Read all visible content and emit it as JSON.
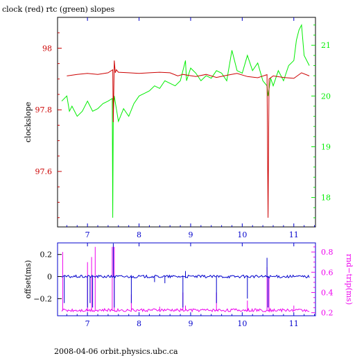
{
  "page_title": "clock (red) rtc (green) slopes",
  "footer": "2008-04-06 orbit.physics.ubc.ca",
  "colors": {
    "clock": "#cc0000",
    "rtc": "#00ee00",
    "offset": "#0000cc",
    "rndtrip": "#ee00ee",
    "frame_top": "#000000",
    "frame_bottom": "#0000cc"
  },
  "chart_data": [
    {
      "type": "line",
      "title": "clock (red) rtc (green) slopes",
      "xlim": [
        6.42,
        11.42
      ],
      "xticks": [
        7,
        8,
        9,
        10,
        11
      ],
      "xtick_labels": [
        "7",
        "8",
        "9",
        "10",
        "11"
      ],
      "left_axis": {
        "label": "clockslope",
        "ylim": [
          97.42,
          98.1
        ],
        "ticks": [
          97.6,
          97.8,
          98.0
        ],
        "tick_labels": [
          "97.6",
          "97.8",
          "98"
        ]
      },
      "right_axis": {
        "label": "",
        "ylim": [
          17.42,
          21.55
        ],
        "ticks": [
          18,
          19,
          20,
          21
        ],
        "tick_labels": [
          "18",
          "19",
          "20",
          "21"
        ]
      },
      "series": [
        {
          "name": "clock",
          "axis": "left",
          "x": [
            6.6,
            6.8,
            7.0,
            7.2,
            7.4,
            7.49,
            7.5,
            7.52,
            7.54,
            7.56,
            7.6,
            7.8,
            8.0,
            8.2,
            8.4,
            8.6,
            8.75,
            8.85,
            8.95,
            9.1,
            9.3,
            9.5,
            9.7,
            9.9,
            10.1,
            10.3,
            10.48,
            10.5,
            10.52,
            10.6,
            10.8,
            11.0,
            11.15,
            11.3
          ],
          "y": [
            97.91,
            97.915,
            97.918,
            97.915,
            97.92,
            97.93,
            97.76,
            97.96,
            97.92,
            97.93,
            97.922,
            97.92,
            97.918,
            97.92,
            97.922,
            97.92,
            97.91,
            97.915,
            97.912,
            97.908,
            97.915,
            97.905,
            97.912,
            97.918,
            97.908,
            97.904,
            97.914,
            97.45,
            97.9,
            97.91,
            97.905,
            97.902,
            97.92,
            97.91
          ]
        },
        {
          "name": "rtc",
          "axis": "left_axis_shared_x",
          "axis_ref": "right",
          "x": [
            6.5,
            6.6,
            6.65,
            6.7,
            6.8,
            6.9,
            7.0,
            7.1,
            7.2,
            7.3,
            7.4,
            7.48,
            7.49,
            7.5,
            7.52,
            7.6,
            7.7,
            7.8,
            7.9,
            8.0,
            8.1,
            8.2,
            8.3,
            8.4,
            8.5,
            8.6,
            8.7,
            8.8,
            8.9,
            8.92,
            9.0,
            9.1,
            9.2,
            9.3,
            9.4,
            9.5,
            9.6,
            9.7,
            9.8,
            9.9,
            10.0,
            10.1,
            10.2,
            10.3,
            10.4,
            10.48,
            10.5,
            10.55,
            10.6,
            10.7,
            10.8,
            10.9,
            11.0,
            11.05,
            11.1,
            11.15,
            11.2,
            11.3
          ],
          "y": [
            19.9,
            20.0,
            19.7,
            19.8,
            19.6,
            19.7,
            19.9,
            19.7,
            19.75,
            19.85,
            19.9,
            19.95,
            17.6,
            19.7,
            20.0,
            19.5,
            19.75,
            19.6,
            19.85,
            20.0,
            20.05,
            20.1,
            20.2,
            20.15,
            20.3,
            20.25,
            20.2,
            20.3,
            20.7,
            20.3,
            20.55,
            20.45,
            20.3,
            20.4,
            20.35,
            20.5,
            20.45,
            20.3,
            20.9,
            20.5,
            20.45,
            20.8,
            20.5,
            20.65,
            20.3,
            20.2,
            20.0,
            20.35,
            20.2,
            20.5,
            20.3,
            20.6,
            20.7,
            21.1,
            21.3,
            21.4,
            20.8,
            20.6
          ]
        }
      ]
    },
    {
      "type": "line",
      "title": "",
      "xlim": [
        6.42,
        11.42
      ],
      "xticks": [
        7,
        8,
        9,
        10,
        11
      ],
      "xtick_labels": [
        "7",
        "8",
        "9",
        "10",
        "11"
      ],
      "left_axis": {
        "label": "offset(ms)",
        "ylim": [
          -0.355,
          0.305
        ],
        "ticks": [
          -0.2,
          0,
          0.2
        ],
        "tick_labels": [
          "−0.2",
          "0",
          "0.2"
        ]
      },
      "right_axis": {
        "label": "rnd−trip(ms)",
        "ylim": [
          0.17,
          0.89
        ],
        "ticks": [
          0.2,
          0.4,
          0.6,
          0.8
        ],
        "tick_labels": [
          "0.2",
          "0.4",
          "0.6",
          "0.8"
        ]
      },
      "series": [
        {
          "name": "offset",
          "axis": "left",
          "baseline": 0,
          "spikes": [
            {
              "x": 6.55,
              "y": -0.24
            },
            {
              "x": 7.0,
              "y": -0.28
            },
            {
              "x": 7.05,
              "y": -0.24
            },
            {
              "x": 7.1,
              "y": -0.28
            },
            {
              "x": 7.5,
              "y": 0.3
            },
            {
              "x": 7.52,
              "y": -0.28
            },
            {
              "x": 7.85,
              "y": -0.24
            },
            {
              "x": 8.3,
              "y": -0.05
            },
            {
              "x": 8.5,
              "y": -0.06
            },
            {
              "x": 8.85,
              "y": -0.28
            },
            {
              "x": 8.9,
              "y": 0.05
            },
            {
              "x": 9.5,
              "y": -0.24
            },
            {
              "x": 10.1,
              "y": -0.2
            },
            {
              "x": 10.48,
              "y": 0.17
            },
            {
              "x": 10.5,
              "y": -0.28
            }
          ]
        },
        {
          "name": "rnd-trip",
          "axis": "right",
          "baseline": 0.225,
          "spikes": [
            {
              "x": 6.52,
              "y": 0.8
            },
            {
              "x": 7.0,
              "y": 0.7
            },
            {
              "x": 7.08,
              "y": 0.75
            },
            {
              "x": 7.15,
              "y": 0.85
            },
            {
              "x": 7.48,
              "y": 0.85
            },
            {
              "x": 7.52,
              "y": 0.85
            },
            {
              "x": 7.85,
              "y": 0.38
            },
            {
              "x": 8.4,
              "y": 0.26
            },
            {
              "x": 8.85,
              "y": 0.4
            },
            {
              "x": 8.9,
              "y": 0.27
            },
            {
              "x": 9.5,
              "y": 0.4
            },
            {
              "x": 10.1,
              "y": 0.32
            },
            {
              "x": 10.48,
              "y": 0.65
            },
            {
              "x": 10.52,
              "y": 0.55
            },
            {
              "x": 11.0,
              "y": 0.27
            }
          ]
        }
      ]
    }
  ]
}
